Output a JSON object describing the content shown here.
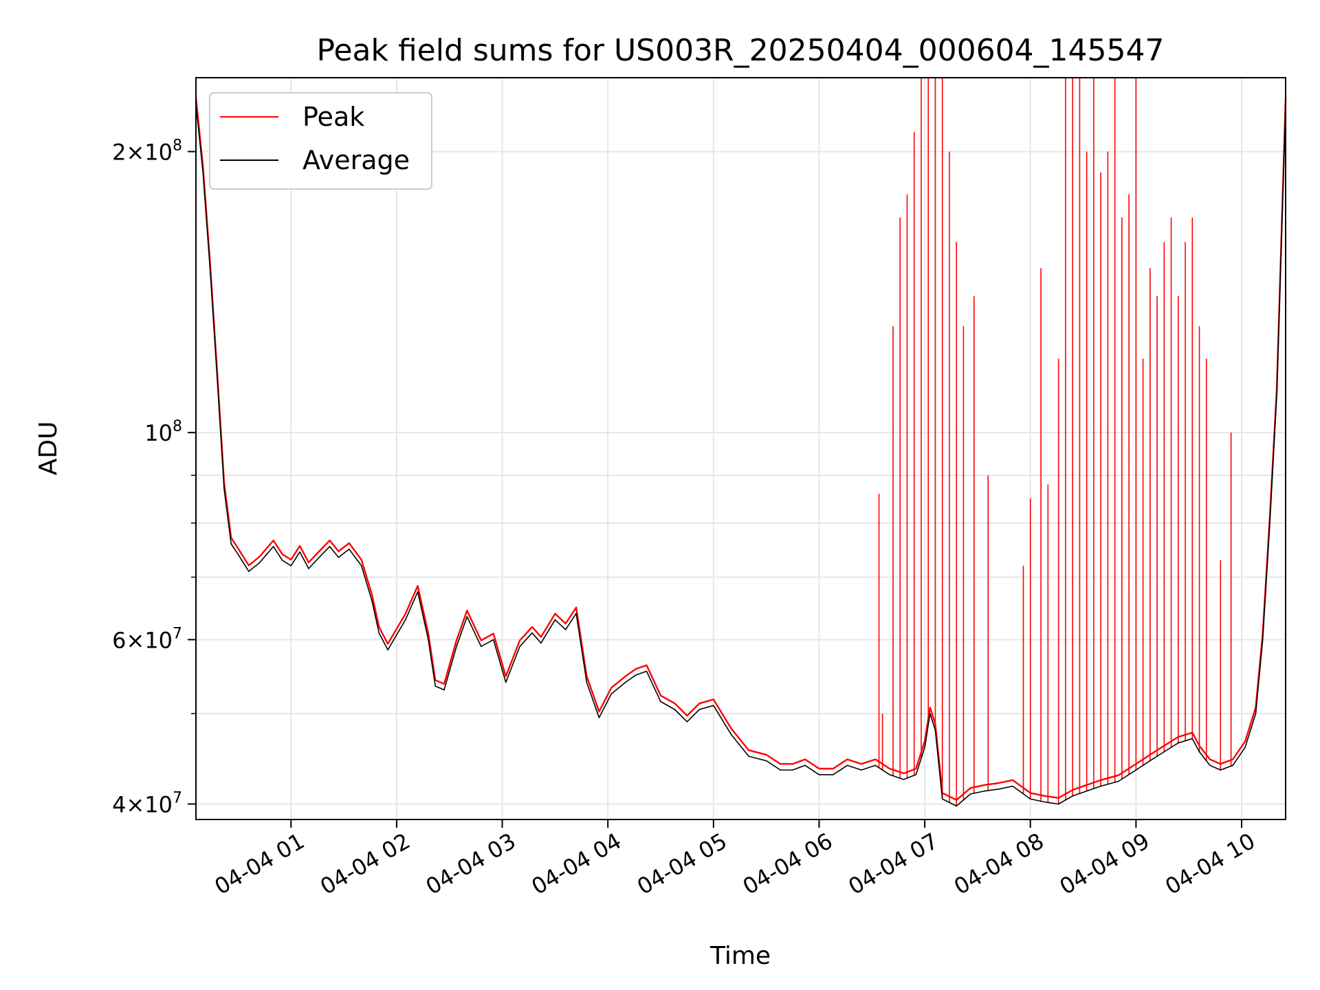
{
  "chart_data": {
    "type": "line",
    "title": "Peak field sums for US003R_20250404_000604_145547",
    "xlabel": "Time",
    "ylabel": "ADU",
    "yscale": "log",
    "xlim": [
      "2025-04-04 00:06",
      "2025-04-04 10:25"
    ],
    "ylim": [
      38500000,
      240000000
    ],
    "grid": true,
    "legend": "top-left",
    "x_tick_labels": [
      "04-04 01",
      "04-04 02",
      "04-04 03",
      "04-04 04",
      "04-04 05",
      "04-04 06",
      "04-04 07",
      "04-04 08",
      "04-04 09",
      "04-04 10"
    ],
    "y_tick_labels": [
      {
        "value": 40000000,
        "mantissa": "4",
        "exp": "7"
      },
      {
        "value": 60000000,
        "mantissa": "6",
        "exp": "7"
      },
      {
        "value": 100000000,
        "mantissa": "",
        "exp": "8"
      },
      {
        "value": 200000000,
        "mantissa": "2",
        "exp": "8"
      }
    ],
    "colors": {
      "Peak": "#ff0000",
      "Average": "#000000"
    },
    "series": [
      {
        "name": "Average",
        "x": [
          "2025-04-04 00:06",
          "2025-04-04 00:10",
          "2025-04-04 00:14",
          "2025-04-04 00:18",
          "2025-04-04 00:22",
          "2025-04-04 00:26",
          "2025-04-04 00:30",
          "2025-04-04 00:36",
          "2025-04-04 00:42",
          "2025-04-04 00:50",
          "2025-04-04 00:55",
          "2025-04-04 01:00",
          "2025-04-04 01:05",
          "2025-04-04 01:10",
          "2025-04-04 01:16",
          "2025-04-04 01:22",
          "2025-04-04 01:27",
          "2025-04-04 01:33",
          "2025-04-04 01:40",
          "2025-04-04 01:46",
          "2025-04-04 01:50",
          "2025-04-04 01:55",
          "2025-04-04 02:05",
          "2025-04-04 02:12",
          "2025-04-04 02:18",
          "2025-04-04 02:22",
          "2025-04-04 02:27",
          "2025-04-04 02:34",
          "2025-04-04 02:40",
          "2025-04-04 02:48",
          "2025-04-04 02:55",
          "2025-04-04 03:02",
          "2025-04-04 03:10",
          "2025-04-04 03:17",
          "2025-04-04 03:22",
          "2025-04-04 03:30",
          "2025-04-04 03:36",
          "2025-04-04 03:42",
          "2025-04-04 03:48",
          "2025-04-04 03:55",
          "2025-04-04 04:02",
          "2025-04-04 04:10",
          "2025-04-04 04:16",
          "2025-04-04 04:22",
          "2025-04-04 04:30",
          "2025-04-04 04:38",
          "2025-04-04 04:45",
          "2025-04-04 04:52",
          "2025-04-04 05:00",
          "2025-04-04 05:10",
          "2025-04-04 05:20",
          "2025-04-04 05:30",
          "2025-04-04 05:38",
          "2025-04-04 05:45",
          "2025-04-04 05:52",
          "2025-04-04 06:00",
          "2025-04-04 06:08",
          "2025-04-04 06:16",
          "2025-04-04 06:24",
          "2025-04-04 06:32",
          "2025-04-04 06:40",
          "2025-04-04 06:48",
          "2025-04-04 06:55",
          "2025-04-04 07:00",
          "2025-04-04 07:03",
          "2025-04-04 07:06",
          "2025-04-04 07:10",
          "2025-04-04 07:18",
          "2025-04-04 07:26",
          "2025-04-04 07:34",
          "2025-04-04 07:42",
          "2025-04-04 07:50",
          "2025-04-04 08:00",
          "2025-04-04 08:08",
          "2025-04-04 08:16",
          "2025-04-04 08:24",
          "2025-04-04 08:32",
          "2025-04-04 08:40",
          "2025-04-04 08:50",
          "2025-04-04 09:00",
          "2025-04-04 09:08",
          "2025-04-04 09:16",
          "2025-04-04 09:24",
          "2025-04-04 09:32",
          "2025-04-04 09:36",
          "2025-04-04 09:42",
          "2025-04-04 09:48",
          "2025-04-04 09:55",
          "2025-04-04 10:02",
          "2025-04-04 10:08",
          "2025-04-04 10:12",
          "2025-04-04 10:16",
          "2025-04-04 10:20",
          "2025-04-04 10:25"
        ],
        "y": [
          225000000,
          190000000,
          150000000,
          115000000,
          87000000,
          76000000,
          74000000,
          71000000,
          72500000,
          75500000,
          73000000,
          72000000,
          74500000,
          71500000,
          73500000,
          75500000,
          73500000,
          75000000,
          72000000,
          66000000,
          61000000,
          58500000,
          63000000,
          67500000,
          60000000,
          53500000,
          53000000,
          59000000,
          63500000,
          59000000,
          60000000,
          54000000,
          59000000,
          61000000,
          59500000,
          63000000,
          61500000,
          64000000,
          54000000,
          49500000,
          52500000,
          54000000,
          55000000,
          55500000,
          51500000,
          50500000,
          49000000,
          50500000,
          51000000,
          47500000,
          45000000,
          44500000,
          43500000,
          43500000,
          44000000,
          43000000,
          43000000,
          44000000,
          43500000,
          44000000,
          43000000,
          42500000,
          43000000,
          46000000,
          50000000,
          48000000,
          40500000,
          39800000,
          41000000,
          41300000,
          41500000,
          41800000,
          40500000,
          40200000,
          40000000,
          40800000,
          41300000,
          41800000,
          42300000,
          43500000,
          44500000,
          45500000,
          46500000,
          47000000,
          45500000,
          44000000,
          43500000,
          44000000,
          46000000,
          50000000,
          60000000,
          80000000,
          110000000,
          225000000
        ]
      },
      {
        "name": "Peak",
        "x": [
          "2025-04-04 06:34",
          "2025-04-04 06:36",
          "2025-04-04 06:42",
          "2025-04-04 06:46",
          "2025-04-04 06:50",
          "2025-04-04 06:54",
          "2025-04-04 06:58",
          "2025-04-04 07:02",
          "2025-04-04 07:06",
          "2025-04-04 07:10",
          "2025-04-04 07:14",
          "2025-04-04 07:18",
          "2025-04-04 07:22",
          "2025-04-04 07:28",
          "2025-04-04 07:36",
          "2025-04-04 07:56",
          "2025-04-04 08:00",
          "2025-04-04 08:06",
          "2025-04-04 08:10",
          "2025-04-04 08:16",
          "2025-04-04 08:20",
          "2025-04-04 08:24",
          "2025-04-04 08:28",
          "2025-04-04 08:32",
          "2025-04-04 08:36",
          "2025-04-04 08:40",
          "2025-04-04 08:44",
          "2025-04-04 08:48",
          "2025-04-04 08:52",
          "2025-04-04 08:56",
          "2025-04-04 09:00",
          "2025-04-04 09:04",
          "2025-04-04 09:08",
          "2025-04-04 09:12",
          "2025-04-04 09:16",
          "2025-04-04 09:20",
          "2025-04-04 09:24",
          "2025-04-04 09:28",
          "2025-04-04 09:32",
          "2025-04-04 09:36",
          "2025-04-04 09:40",
          "2025-04-04 09:48",
          "2025-04-04 09:54"
        ],
        "y": [
          86000000,
          50000000,
          130000000,
          170000000,
          180000000,
          210000000,
          240000000,
          240000000,
          240000000,
          240000000,
          200000000,
          160000000,
          130000000,
          140000000,
          90000000,
          72000000,
          85000000,
          150000000,
          88000000,
          120000000,
          240000000,
          240000000,
          240000000,
          200000000,
          240000000,
          190000000,
          200000000,
          240000000,
          170000000,
          180000000,
          240000000,
          120000000,
          150000000,
          140000000,
          160000000,
          170000000,
          140000000,
          160000000,
          170000000,
          130000000,
          120000000,
          73000000,
          100000000
        ]
      }
    ]
  }
}
